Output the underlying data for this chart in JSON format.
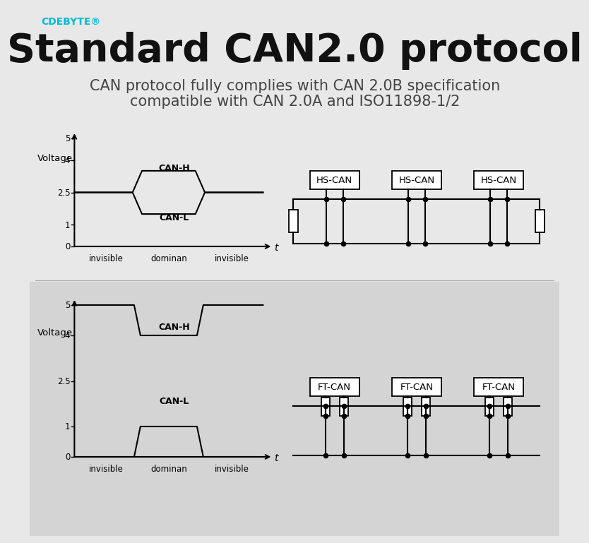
{
  "bg_color_top": "#e8e8e8",
  "bg_color_bot": "#d8d8d8",
  "title": "Standard CAN2.0 protocol",
  "subtitle1": "CAN protocol fully complies with CAN 2.0B specification",
  "subtitle2": "compatible with CAN 2.0A and ISO11898-1/2",
  "brand": "CDEBYTE®",
  "brand_color": "#00bcd4",
  "title_color": "#111111",
  "subtitle_color": "#444444",
  "top_diagram": {
    "ylabel": "Voltage",
    "yticks": [
      0,
      1,
      2.5,
      4,
      5
    ],
    "xlabels": [
      "invisible",
      "dominan",
      "invisible"
    ],
    "canh_label": "CAN-H",
    "canl_label": "CAN-L",
    "bus_labels": [
      "HS-CAN",
      "HS-CAN",
      "HS-CAN"
    ]
  },
  "bottom_diagram": {
    "ylabel": "Voltage",
    "yticks": [
      0,
      1,
      2.5,
      4,
      5
    ],
    "xlabels": [
      "invisible",
      "dominan",
      "invisible"
    ],
    "canh_label": "CAN-H",
    "canl_label": "CAN-L",
    "bus_labels": [
      "FT-CAN",
      "FT-CAN",
      "FT-CAN"
    ]
  }
}
